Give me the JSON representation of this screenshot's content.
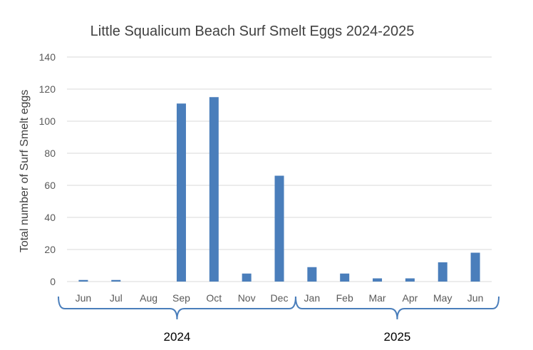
{
  "chart_data": {
    "type": "bar",
    "title": "Little Squalicum Beach Surf Smelt Eggs 2024-2025",
    "xlabel": "",
    "ylabel": "Total number of Surf Smelt eggs",
    "ylim": [
      0,
      140
    ],
    "yticks": [
      "0",
      "20",
      "40",
      "60",
      "80",
      "100",
      "120",
      "140"
    ],
    "grid": true,
    "legend": "none",
    "categories": [
      "Jun",
      "Jul",
      "Aug",
      "Sep",
      "Oct",
      "Nov",
      "Dec",
      "Jan",
      "Feb",
      "Mar",
      "Apr",
      "May",
      "Jun"
    ],
    "values": [
      1,
      1,
      0,
      111,
      115,
      5,
      66,
      9,
      5,
      2,
      2,
      12,
      18
    ],
    "groups": [
      {
        "label": "2024",
        "from": 0,
        "to": 6
      },
      {
        "label": "2025",
        "from": 7,
        "to": 12
      }
    ],
    "bar_color": "#4a7ebb"
  }
}
